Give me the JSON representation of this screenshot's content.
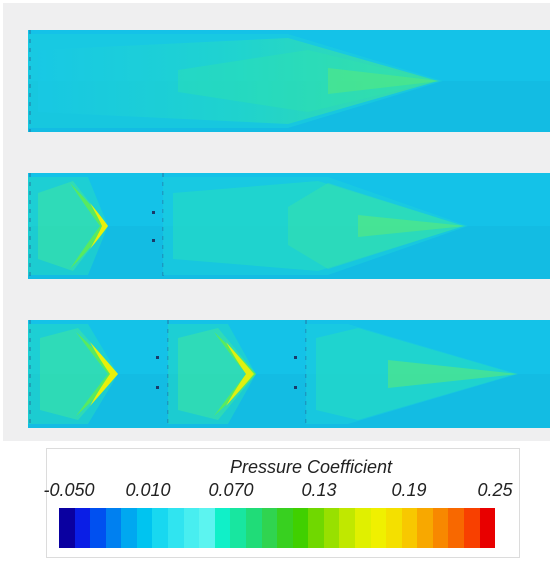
{
  "legend": {
    "title": "Pressure Coefficient",
    "ticks": [
      "-0.050",
      "0.010",
      "0.070",
      "0.13",
      "0.19",
      "0.25"
    ],
    "colors": [
      "#0a00a0",
      "#0a1ee6",
      "#0050f0",
      "#0080f0",
      "#00a8f0",
      "#00c4f0",
      "#18d8f0",
      "#30e4f0",
      "#48eef0",
      "#5cf4f0",
      "#10f0c8",
      "#18e6a0",
      "#20dc78",
      "#30d450",
      "#38d020",
      "#40d000",
      "#70d800",
      "#98e000",
      "#c0e800",
      "#e0f000",
      "#f0f000",
      "#f4e000",
      "#f8c800",
      "#f8a800",
      "#f88800",
      "#f86800",
      "#f84000",
      "#e80000"
    ]
  },
  "panels": [
    {
      "id": "panel-1",
      "caption": ""
    },
    {
      "id": "panel-2",
      "caption": ""
    },
    {
      "id": "panel-3",
      "caption": ""
    }
  ],
  "colors": {
    "background": "#efeff0",
    "field": "#14c2e8",
    "wake": "#0fb0d8",
    "body_low": "#16dcc4",
    "body_mid": "#2fe6a6",
    "tip": "#56e874",
    "peak": "#e8f00a"
  }
}
